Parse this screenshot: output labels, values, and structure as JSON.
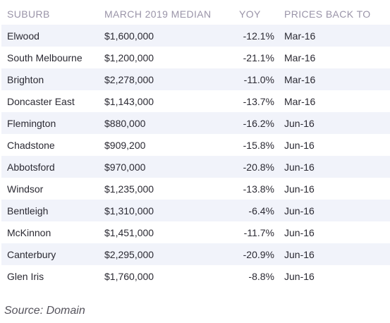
{
  "table": {
    "headers": [
      "SUBURB",
      "MARCH 2019 MEDIAN",
      "YOY",
      "PRICES BACK TO"
    ],
    "rows": [
      [
        "Elwood",
        "$1,600,000",
        "-12.1%",
        "Mar-16"
      ],
      [
        "South Melbourne",
        "$1,200,000",
        "-21.1%",
        "Mar-16"
      ],
      [
        "Brighton",
        "$2,278,000",
        "-11.0%",
        "Mar-16"
      ],
      [
        "Doncaster East",
        "$1,143,000",
        "-13.7%",
        "Mar-16"
      ],
      [
        "Flemington",
        "$880,000",
        "-16.2%",
        "Jun-16"
      ],
      [
        "Chadstone",
        "$909,200",
        "-15.8%",
        "Jun-16"
      ],
      [
        "Abbotsford",
        "$970,000",
        "-20.8%",
        "Jun-16"
      ],
      [
        "Windsor",
        "$1,235,000",
        "-13.8%",
        "Jun-16"
      ],
      [
        "Bentleigh",
        "$1,310,000",
        "-6.4%",
        "Jun-16"
      ],
      [
        "McKinnon",
        "$1,451,000",
        "-11.7%",
        "Jun-16"
      ],
      [
        "Canterbury",
        "$2,295,000",
        "-20.9%",
        "Jun-16"
      ],
      [
        "Glen Iris",
        "$1,760,000",
        "-8.8%",
        "Jun-16"
      ]
    ]
  },
  "source": "Source: Domain",
  "colors": {
    "header_text": "#9a94a8",
    "body_text": "#2b2a33",
    "row_stripe": "#f1f3fa",
    "source_text": "#55535c"
  }
}
